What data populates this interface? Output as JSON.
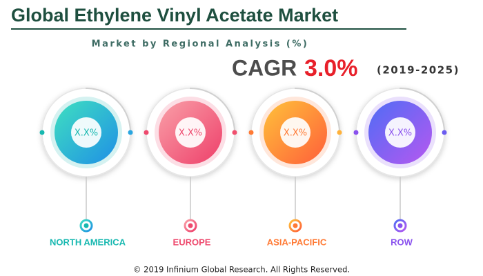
{
  "header": {
    "title": "Global Ethylene Vinyl Acetate Market",
    "subtitle": "Market by Regional Analysis (%)"
  },
  "cagr": {
    "label": "CAGR",
    "value": "3.0%",
    "period": "(2019-2025)"
  },
  "regions": [
    {
      "name": "NORTH AMERICA",
      "share": "X.X%"
    },
    {
      "name": "EUROPE",
      "share": "X.X%"
    },
    {
      "name": "ASIA-PACIFIC",
      "share": "X.X%"
    },
    {
      "name": "ROW",
      "share": "X.X%"
    }
  ],
  "footer": "© 2019 Infinium Global Research. All Rights Reserved."
}
